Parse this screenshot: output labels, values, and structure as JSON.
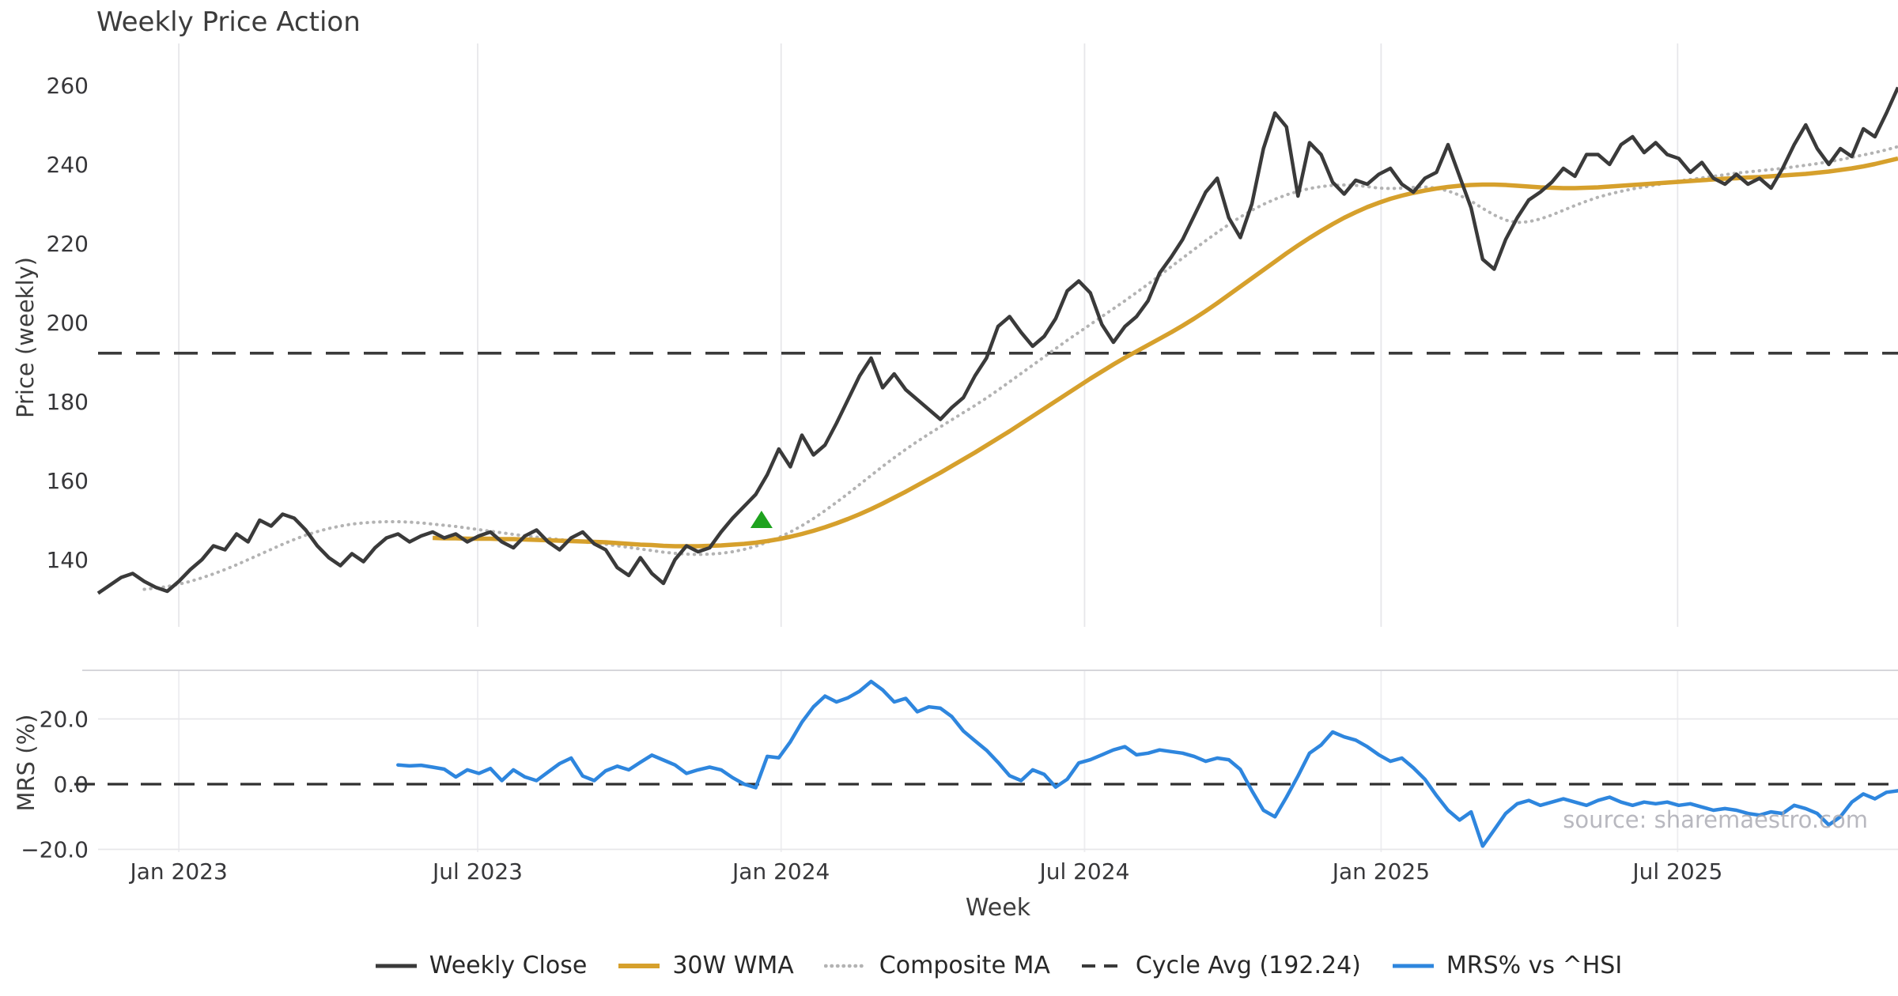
{
  "title": "Weekly Price Action",
  "watermark": "source: sharemaestro.com",
  "x_axis": {
    "label": "Week"
  },
  "price_panel": {
    "ylabel": "Price (weekly)"
  },
  "mrs_panel": {
    "ylabel": "MRS (%)"
  },
  "colors": {
    "close": "#3a3a3a",
    "wma": "#d6a02c",
    "composite": "#b3b3b3",
    "cycle_avg": "#3a3a3a",
    "mrs": "#2e86de",
    "signal": "#1ea21e",
    "grid": "#e7e7ea",
    "spine": "#d6d6db",
    "tick_text": "#37373a"
  },
  "legend": [
    {
      "label": "Weekly Close",
      "color": "#3a3a3a",
      "style": "solid",
      "width": 5
    },
    {
      "label": "30W WMA",
      "color": "#d6a02c",
      "style": "solid",
      "width": 6
    },
    {
      "label": "Composite MA",
      "color": "#b3b3b3",
      "style": "dotted",
      "width": 4.5
    },
    {
      "label": "Cycle Avg (192.24)",
      "color": "#3a3a3a",
      "style": "dashed",
      "width": 4
    },
    {
      "label": "MRS% vs ^HSI",
      "color": "#2e86de",
      "style": "solid",
      "width": 5
    }
  ],
  "chart_data": {
    "type": "line",
    "x_unit": "week_index",
    "weeks_total": 157,
    "x_ticks": [
      {
        "week": 7,
        "label": "Jan 2023"
      },
      {
        "week": 32.9,
        "label": "Jul 2023"
      },
      {
        "week": 59.2,
        "label": "Jan 2024"
      },
      {
        "week": 85.5,
        "label": "Jul 2024"
      },
      {
        "week": 111.2,
        "label": "Jan 2025"
      },
      {
        "week": 136.9,
        "label": "Jul 2025"
      }
    ],
    "panels": [
      {
        "name": "price",
        "ylabel": "Price (weekly)",
        "ylim": [
          122,
          270
        ],
        "yticks": [
          {
            "value": 140,
            "label": "140"
          },
          {
            "value": 160,
            "label": "160"
          },
          {
            "value": 180,
            "label": "180"
          },
          {
            "value": 200,
            "label": "200"
          },
          {
            "value": 220,
            "label": "220"
          },
          {
            "value": 240,
            "label": "240"
          },
          {
            "value": 260,
            "label": "260"
          }
        ],
        "grid": "vertical-only",
        "cycle_avg": 192.24,
        "signal_marker": {
          "shape": "triangle-up",
          "color": "#1ea21e",
          "week": 57.5,
          "price": 150
        },
        "series": [
          {
            "name": "Weekly Close",
            "color": "#3a3a3a",
            "style": "solid",
            "start_week": 0,
            "values": [
              131.5,
              133.5,
              135.5,
              136.5,
              134.5,
              133,
              132,
              134.5,
              137.5,
              140,
              143.5,
              142.5,
              146.5,
              144.5,
              150,
              148.5,
              151.5,
              150.5,
              147.5,
              143.5,
              140.5,
              138.5,
              141.5,
              139.5,
              143,
              145.5,
              146.5,
              144.5,
              146,
              147,
              145.5,
              146.5,
              144.5,
              146,
              147,
              144.5,
              143,
              146,
              147.5,
              144.5,
              142.5,
              145.5,
              147,
              144,
              142.5,
              138,
              136,
              140.5,
              136.5,
              134,
              140,
              143.5,
              142,
              143,
              147,
              150.5,
              153.5,
              156.5,
              161.5,
              168,
              163.5,
              171.5,
              166.5,
              169,
              174.5,
              180.5,
              186.5,
              191,
              183.5,
              187,
              183,
              180.5,
              178,
              175.5,
              178.5,
              181,
              186.5,
              191,
              199,
              201.5,
              197.5,
              194,
              196.5,
              201,
              208,
              210.5,
              207.5,
              199.5,
              195,
              199,
              201.5,
              205.5,
              212.5,
              216.5,
              221,
              227,
              233,
              236.5,
              226.5,
              221.5,
              230,
              244,
              253,
              249.5,
              232,
              245.5,
              242.5,
              235.5,
              232.5,
              236,
              235,
              237.5,
              239,
              235,
              233,
              236.5,
              238,
              245,
              237,
              229,
              216,
              213.5,
              221,
              226.5,
              231,
              233,
              235.5,
              239,
              237,
              242.5,
              242.5,
              240,
              245,
              247,
              243,
              245.5,
              242.5,
              241.5,
              238,
              240.5,
              236.5,
              235,
              237.5,
              235,
              236.5,
              234,
              239,
              245,
              250,
              244,
              240,
              244,
              242,
              249,
              247,
              253,
              259.5
            ]
          },
          {
            "name": "30W WMA",
            "color": "#d6a02c",
            "style": "solid",
            "start_week": 29,
            "values": [
              145.5,
              145.4,
              145.4,
              145.3,
              145.3,
              145.3,
              145.2,
              145.2,
              145.1,
              145,
              144.9,
              144.8,
              144.7,
              144.6,
              144.5,
              144.4,
              144.2,
              144,
              143.8,
              143.7,
              143.5,
              143.4,
              143.4,
              143.4,
              143.5,
              143.6,
              143.8,
              144,
              144.3,
              144.7,
              145.2,
              145.8,
              146.5,
              147.3,
              148.2,
              149.2,
              150.3,
              151.5,
              152.8,
              154.2,
              155.7,
              157.2,
              158.8,
              160.4,
              162,
              163.7,
              165.4,
              167.1,
              168.9,
              170.7,
              172.5,
              174.4,
              176.3,
              178.2,
              180.1,
              182,
              183.9,
              185.8,
              187.6,
              189.4,
              191.1,
              192.7,
              194.3,
              195.9,
              197.5,
              199.2,
              201,
              202.9,
              204.9,
              207,
              209.1,
              211.2,
              213.3,
              215.4,
              217.5,
              219.5,
              221.4,
              223.2,
              224.9,
              226.5,
              227.9,
              229.2,
              230.3,
              231.3,
              232.1,
              232.8,
              233.4,
              233.9,
              234.3,
              234.6,
              234.8,
              234.9,
              234.9,
              234.8,
              234.6,
              234.4,
              234.2,
              234.1,
              234,
              234,
              234.1,
              234.2,
              234.4,
              234.6,
              234.8,
              235,
              235.2,
              235.4,
              235.6,
              235.8,
              236,
              236.2,
              236.4,
              236.5,
              236.7,
              236.8,
              237,
              237.2,
              237.4,
              237.6,
              237.9,
              238.2,
              238.6,
              239,
              239.5,
              240.1,
              240.8,
              241.5
            ]
          },
          {
            "name": "Composite MA",
            "color": "#b3b3b3",
            "style": "dotted",
            "start_week": 4,
            "values": [
              132.5,
              132.8,
              133.2,
              133.8,
              134.5,
              135.4,
              136.4,
              137.5,
              138.7,
              140,
              141.3,
              142.6,
              143.9,
              145.1,
              146.2,
              147.1,
              147.9,
              148.5,
              149,
              149.3,
              149.5,
              149.6,
              149.6,
              149.5,
              149.3,
              149,
              148.7,
              148.4,
              148,
              147.6,
              147.2,
              146.8,
              146.4,
              146,
              145.7,
              145.4,
              145.1,
              144.8,
              144.5,
              144.2,
              143.9,
              143.5,
              143.1,
              142.7,
              142.3,
              141.9,
              141.6,
              141.4,
              141.3,
              141.4,
              141.6,
              142,
              142.6,
              143.4,
              144.4,
              145.6,
              147,
              148.6,
              150.4,
              152.4,
              154.5,
              156.7,
              159,
              161.3,
              163.6,
              165.8,
              167.9,
              169.9,
              171.8,
              173.6,
              175.4,
              177.2,
              179,
              180.9,
              182.9,
              185,
              187.1,
              189.2,
              191.3,
              193.4,
              195.5,
              197.5,
              199.5,
              201.5,
              203.5,
              205.5,
              207.6,
              209.7,
              211.9,
              214.1,
              216.3,
              218.5,
              220.7,
              222.8,
              224.8,
              226.7,
              228.4,
              229.9,
              231.2,
              232.3,
              233.2,
              233.9,
              234.4,
              234.7,
              234.8,
              234.7,
              234.4,
              234,
              233.9,
              234,
              234.2,
              234.3,
              234,
              233.3,
              232.2,
              230.7,
              228.9,
              227.2,
              225.9,
              225.3,
              225.5,
              226.2,
              227.2,
              228.4,
              229.6,
              230.7,
              231.7,
              232.5,
              233.2,
              233.8,
              234.3,
              234.8,
              235.3,
              235.8,
              236.2,
              236.6,
              237,
              237.4,
              237.8,
              238.1,
              238.4,
              238.7,
              239,
              239.4,
              239.8,
              240.2,
              240.7,
              241.2,
              241.8,
              242.4,
              243,
              243.7,
              244.5
            ]
          },
          {
            "name": "Cycle Avg",
            "color": "#3a3a3a",
            "style": "dashed",
            "constant": 192.24
          }
        ]
      },
      {
        "name": "mrs",
        "ylabel": "MRS (%)",
        "ylim": [
          -24,
          35
        ],
        "yticks": [
          {
            "value": 20,
            "label": "20.0"
          },
          {
            "value": 0,
            "label": "0.0"
          },
          {
            "value": -20,
            "label": "−20.0"
          }
        ],
        "zero_line": "dashed",
        "series": [
          {
            "name": "MRS% vs ^HSI",
            "color": "#2e86de",
            "style": "solid",
            "start_week": 26,
            "values": [
              5.9,
              5.6,
              5.8,
              5.2,
              4.6,
              2.2,
              4.4,
              3.3,
              4.8,
              1.1,
              4.4,
              2.2,
              1.1,
              3.7,
              6.3,
              8,
              2.5,
              1.1,
              4.1,
              5.5,
              4.4,
              6.7,
              8.9,
              7.4,
              5.9,
              3.3,
              4.4,
              5.2,
              4.4,
              2,
              0,
              -1.1,
              8.5,
              8.1,
              13,
              19,
              23.7,
              27,
              25.2,
              26.5,
              28.5,
              31.5,
              28.9,
              25.2,
              26.3,
              22.2,
              23.7,
              23.3,
              20.7,
              16.3,
              13.3,
              10.4,
              6.7,
              2.6,
              1.1,
              4.4,
              3,
              -0.9,
              1.5,
              6.5,
              7.5,
              9,
              10.5,
              11.5,
              9,
              9.5,
              10.5,
              10,
              9.5,
              8.5,
              7,
              8,
              7.5,
              4.5,
              -2,
              -8,
              -10,
              -4,
              2.5,
              9.5,
              12,
              16,
              14.5,
              13.5,
              11.5,
              9,
              7,
              8,
              5,
              1.5,
              -3.5,
              -8,
              -11,
              -8.5,
              -19,
              -14,
              -9,
              -6,
              -5,
              -6.5,
              -5.5,
              -4.5,
              -5.5,
              -6.5,
              -5,
              -4,
              -5.5,
              -6.5,
              -5.5,
              -6,
              -5.5,
              -6.5,
              -6,
              -7,
              -8,
              -7.5,
              -8,
              -9,
              -9.5,
              -8.5,
              -9,
              -6.5,
              -7.5,
              -9,
              -12.5,
              -10,
              -5.5,
              -3,
              -4.5,
              -2.5,
              -2
            ]
          }
        ]
      }
    ]
  }
}
